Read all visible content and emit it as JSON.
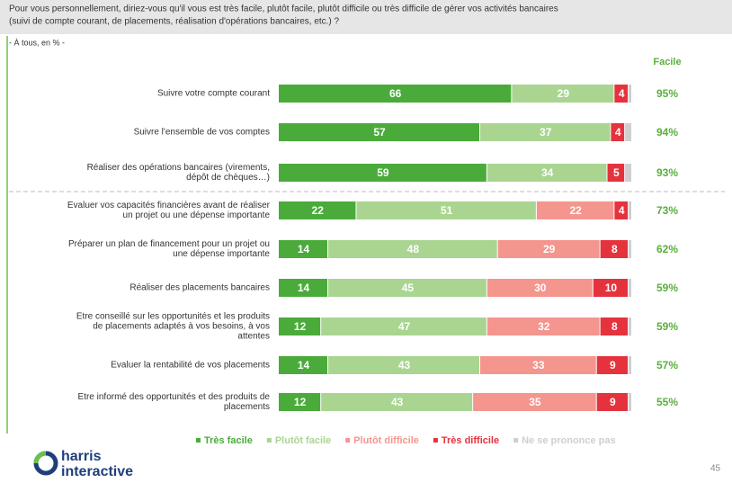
{
  "header": {
    "question": [
      "Pour vous personnellement, diriez-vous qu'il vous est très facile, plutôt facile, plutôt difficile ou très difficile de gérer vos activités bancaires",
      "(suivi de compte courant, de placements, réalisation d'opérations bancaires, etc.) ?"
    ],
    "base": "- À tous, en % -"
  },
  "chart_data": {
    "type": "stacked-bar",
    "orientation": "horizontal",
    "categories": [
      [
        "Suivre votre compte courant"
      ],
      [
        "Suivre l'ensemble de vos comptes"
      ],
      [
        "Réaliser des opérations bancaires (virements,",
        "dépôt de chèques…)"
      ],
      [
        "Evaluer vos capacités financières avant de réaliser",
        "un projet ou une dépense importante"
      ],
      [
        "Préparer un plan de financement pour un projet ou",
        "une dépense importante"
      ],
      [
        "Réaliser des placements bancaires"
      ],
      [
        "Etre conseillé sur les opportunités et les produits",
        "de placements adaptés à vos besoins, à vos",
        "attentes"
      ],
      [
        "Evaluer la rentabilité de vos placements"
      ],
      [
        "Etre informé des opportunités et des produits de",
        "placements"
      ]
    ],
    "series": [
      {
        "name": "Très facile",
        "color": "#4aab3a",
        "values": [
          66,
          57,
          59,
          22,
          14,
          14,
          12,
          14,
          12
        ]
      },
      {
        "name": "Plutôt facile",
        "color": "#a9d591",
        "values": [
          29,
          37,
          34,
          51,
          48,
          45,
          47,
          43,
          43
        ]
      },
      {
        "name": "Plutôt difficile",
        "color": "#f4958e",
        "values": [
          null,
          null,
          null,
          22,
          29,
          30,
          32,
          33,
          35
        ]
      },
      {
        "name": "Très difficile",
        "color": "#e5333d",
        "values": [
          4,
          4,
          5,
          4,
          8,
          10,
          8,
          9,
          9
        ]
      },
      {
        "name": "Ne se prononce pas",
        "color": "#cfcfcf",
        "values": [
          1,
          2,
          2,
          1,
          1,
          1,
          1,
          1,
          1
        ],
        "labels": false
      }
    ],
    "xlim": [
      0,
      100
    ],
    "total": {
      "title": "Facile",
      "color": "#5aaf3c",
      "values": [
        95,
        94,
        93,
        73,
        62,
        59,
        59,
        57,
        55
      ],
      "value_labels": [
        "95%",
        "94%",
        "93%",
        "73%",
        "62%",
        "59%",
        "59%",
        "57%",
        "55%"
      ]
    }
  },
  "footer": {
    "logo": [
      "harris",
      "interactive"
    ],
    "page": "45"
  }
}
